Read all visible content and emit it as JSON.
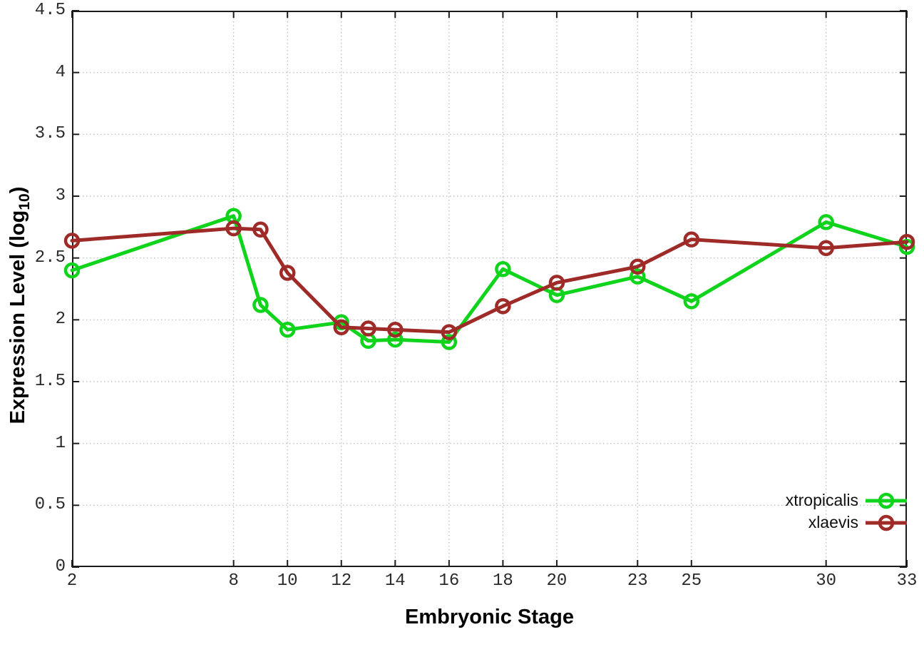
{
  "figure": {
    "ylabel_main": "Expression Level (log",
    "ylabel_sub": "10",
    "ylabel_close": ")",
    "xlabel": "Embryonic Stage"
  },
  "axes": {
    "yticks": [
      "0",
      "0.5",
      "1",
      "1.5",
      "2",
      "2.5",
      "3",
      "3.5",
      "4",
      "4.5"
    ],
    "xticks": [
      "2",
      "8",
      "10",
      "12",
      "14",
      "16",
      "18",
      "20",
      "23",
      "25",
      "30",
      "33"
    ]
  },
  "chart_data": {
    "type": "line",
    "title": "",
    "xlabel": "Embryonic Stage",
    "ylabel": "Expression Level (log10)",
    "x": [
      2,
      8,
      9,
      10,
      12,
      13,
      14,
      16,
      18,
      20,
      23,
      25,
      30,
      33
    ],
    "series": [
      {
        "name": "xtropicalis",
        "color": "#10d31c",
        "values": [
          2.4,
          2.84,
          2.12,
          1.92,
          1.98,
          1.83,
          1.84,
          1.82,
          2.41,
          2.2,
          2.35,
          2.15,
          2.79,
          2.59
        ]
      },
      {
        "name": "xlaevis",
        "color": "#9e2b28",
        "values": [
          2.64,
          2.74,
          2.73,
          2.38,
          1.94,
          1.93,
          1.92,
          1.9,
          2.11,
          2.3,
          2.43,
          2.65,
          2.58,
          2.63
        ]
      }
    ],
    "xlim": [
      2,
      33
    ],
    "ylim": [
      0,
      4.5
    ],
    "grid": true,
    "legend_position": "bottom-right",
    "marker": "open-circle"
  },
  "style": {
    "frame_color": "#1c1c1c",
    "grid_color": "#b8b8b8",
    "tick_color": "#1c1c1c",
    "background": "#ffffff"
  }
}
